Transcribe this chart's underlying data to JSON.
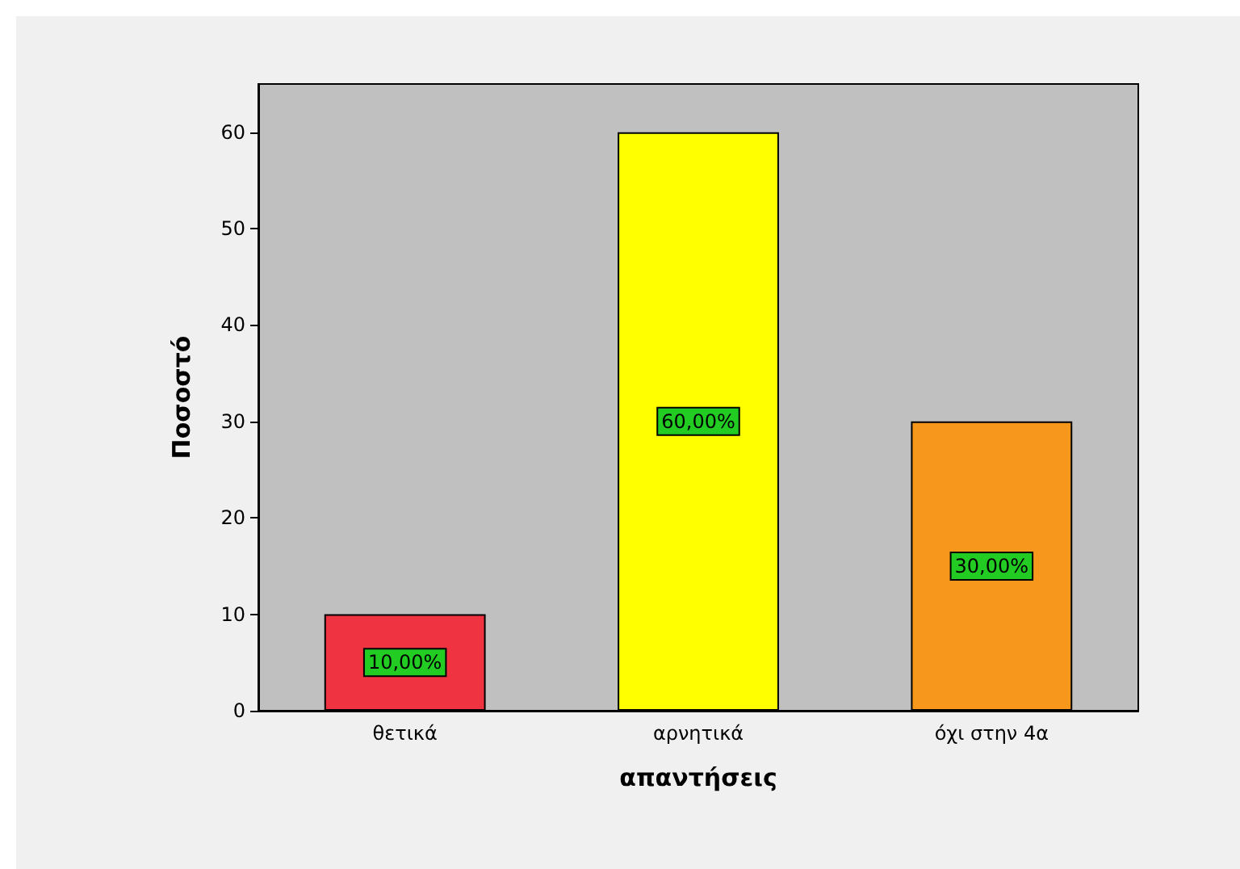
{
  "chart_data": {
    "type": "bar",
    "categories": [
      "θετικά",
      "αρνητικά",
      "όχι στην 4α"
    ],
    "values": [
      10,
      60,
      30
    ],
    "colors": [
      "#ef3340",
      "#ffff00",
      "#f7981d"
    ],
    "value_labels": [
      "10,00%",
      "60,00%",
      "30,00%"
    ],
    "xlabel": "απαντήσεις",
    "ylabel": "Ποσοστό",
    "ylim": [
      0,
      65
    ],
    "yticks": [
      0,
      10,
      20,
      30,
      40,
      50,
      60
    ],
    "grid": false
  }
}
